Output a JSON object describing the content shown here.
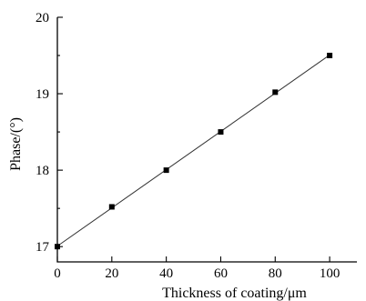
{
  "chart_data": {
    "type": "scatter",
    "title": "",
    "xlabel": "Thickness of coating/μm",
    "ylabel": "Phase/(°)",
    "xlim": [
      0,
      110
    ],
    "ylim": [
      16.8,
      20
    ],
    "xticks": [
      0,
      20,
      40,
      60,
      80,
      100
    ],
    "yticks": [
      17,
      18,
      19,
      20
    ],
    "grid": false,
    "legend": "none",
    "series": [
      {
        "x": [
          0,
          20,
          40,
          60,
          80,
          100
        ],
        "y": [
          17.0,
          17.52,
          18.0,
          18.5,
          19.02,
          19.5
        ],
        "marker": "square",
        "fit_line": true
      }
    ]
  }
}
